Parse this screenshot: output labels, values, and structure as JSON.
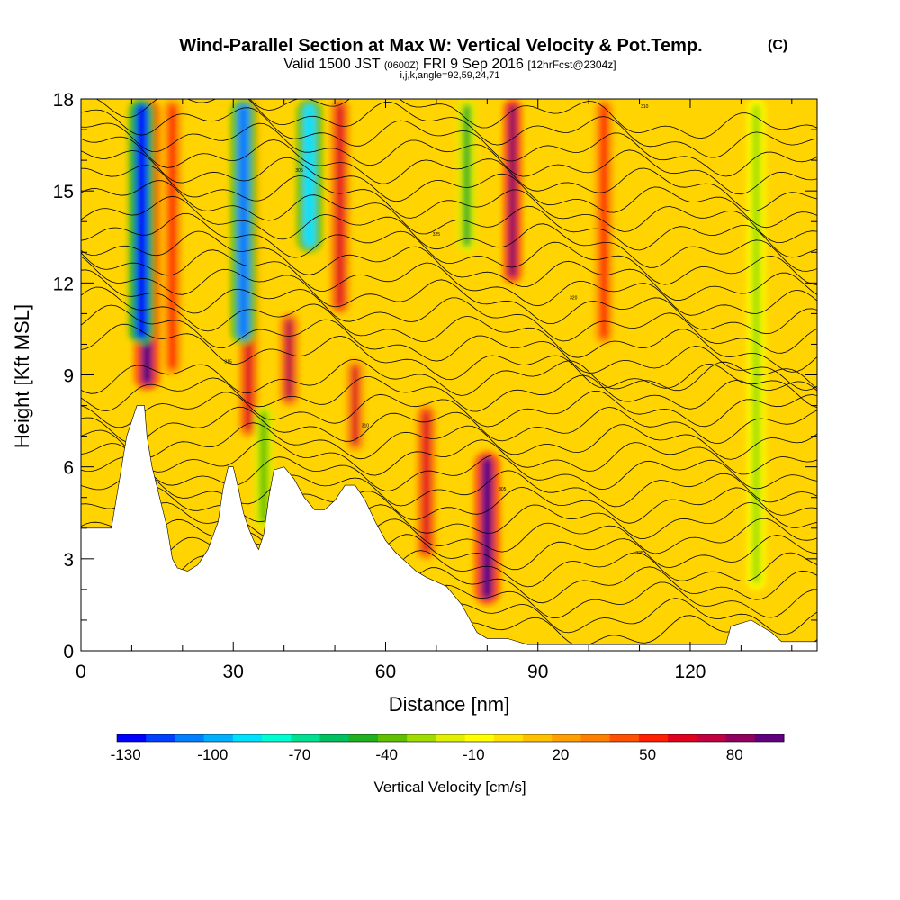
{
  "chart_data": {
    "type": "heatmap",
    "title": "Wind-Parallel Section at Max W: Vertical Velocity & Pot.Temp.",
    "title_mark": "(C)",
    "subtitle": {
      "valid": "Valid 1500 JST",
      "utc": "(0600Z)",
      "date": "FRI 9 Sep 2016",
      "fcst": "[12hrFcst@2304z]"
    },
    "subtitle2": "i,j,k,angle=92,59,24,71",
    "xlabel": "Distance [nm]",
    "ylabel": "Height [Kft MSL]",
    "xlim": [
      0,
      145
    ],
    "ylim": [
      0,
      18
    ],
    "x_ticks": [
      "0",
      "30",
      "60",
      "90",
      "120"
    ],
    "y_ticks": [
      "0",
      "3",
      "6",
      "9",
      "12",
      "15",
      "18"
    ],
    "colorbar": {
      "label": "Vertical Velocity [cm/s]",
      "tick_labels": [
        "-130",
        "-100",
        "-70",
        "-40",
        "-10",
        "20",
        "50",
        "80"
      ],
      "levels": [
        -130,
        -120,
        -110,
        -100,
        -90,
        -80,
        -70,
        -60,
        -50,
        -40,
        -30,
        -20,
        -10,
        0,
        10,
        20,
        30,
        40,
        50,
        60,
        70,
        80,
        90
      ],
      "colors": [
        "#0000ff",
        "#0040ff",
        "#0080ff",
        "#00b0ff",
        "#00e0ff",
        "#00ffd0",
        "#00e090",
        "#00c060",
        "#20b020",
        "#60c000",
        "#a0dc00",
        "#e0f000",
        "#ffff00",
        "#ffe000",
        "#ffc000",
        "#ffa000",
        "#ff8000",
        "#ff5000",
        "#ff2000",
        "#e00020",
        "#c00040",
        "#900060",
        "#600080"
      ]
    },
    "terrain_kft": [
      [
        0,
        4
      ],
      [
        6,
        4
      ],
      [
        7,
        5
      ],
      [
        9,
        7
      ],
      [
        11,
        8
      ],
      [
        12.5,
        8
      ],
      [
        13,
        7
      ],
      [
        14,
        6
      ],
      [
        15.5,
        5
      ],
      [
        17,
        4
      ],
      [
        18,
        3
      ],
      [
        19,
        2.7
      ],
      [
        21,
        2.6
      ],
      [
        23,
        2.8
      ],
      [
        25,
        3.3
      ],
      [
        27,
        4.2
      ],
      [
        28,
        5.3
      ],
      [
        29,
        6
      ],
      [
        30,
        6
      ],
      [
        31,
        5.3
      ],
      [
        32,
        4.5
      ],
      [
        33,
        4
      ],
      [
        34,
        3.6
      ],
      [
        35,
        3.3
      ],
      [
        36,
        3.8
      ],
      [
        37,
        5
      ],
      [
        38,
        5.9
      ],
      [
        40,
        6
      ],
      [
        42,
        5.6
      ],
      [
        44,
        5
      ],
      [
        46,
        4.6
      ],
      [
        48,
        4.6
      ],
      [
        50,
        4.9
      ],
      [
        52,
        5.4
      ],
      [
        54,
        5.4
      ],
      [
        56,
        4.9
      ],
      [
        58,
        4.2
      ],
      [
        60,
        3.6
      ],
      [
        62,
        3.2
      ],
      [
        64,
        2.9
      ],
      [
        66,
        2.6
      ],
      [
        68,
        2.4
      ],
      [
        72,
        2.1
      ],
      [
        75,
        1.5
      ],
      [
        78,
        0.6
      ],
      [
        80,
        0.4
      ],
      [
        84,
        0.4
      ],
      [
        88,
        0.2
      ],
      [
        127,
        0.2
      ],
      [
        128,
        0.8
      ],
      [
        132,
        1.0
      ],
      [
        134,
        0.8
      ],
      [
        136,
        0.6
      ],
      [
        138,
        0.3
      ],
      [
        145,
        0.3
      ]
    ],
    "updrafts_cms": [
      {
        "x": 13,
        "y0": 8.5,
        "y1": 18,
        "w": 90
      },
      {
        "x": 18,
        "y0": 9,
        "y1": 18,
        "w": 50
      },
      {
        "x": 33,
        "y0": 7,
        "y1": 18,
        "w": 60
      },
      {
        "x": 41,
        "y0": 8,
        "y1": 11,
        "w": 70
      },
      {
        "x": 54,
        "y0": 6.5,
        "y1": 9.5,
        "w": 55
      },
      {
        "x": 51,
        "y0": 11,
        "y1": 18,
        "w": 60
      },
      {
        "x": 68,
        "y0": 3,
        "y1": 8,
        "w": 60
      },
      {
        "x": 80,
        "y0": 1.5,
        "y1": 6.5,
        "w": 95
      },
      {
        "x": 85,
        "y0": 12,
        "y1": 18,
        "w": 80
      },
      {
        "x": 103,
        "y0": 10,
        "y1": 18,
        "w": 50
      }
    ],
    "downdrafts_cms": [
      {
        "x": 12,
        "y0": 10,
        "y1": 18,
        "w": -130
      },
      {
        "x": 32,
        "y0": 10,
        "y1": 18,
        "w": -110
      },
      {
        "x": 45,
        "y0": 13,
        "y1": 18,
        "w": -90
      },
      {
        "x": 36,
        "y0": 4,
        "y1": 8,
        "w": -40
      },
      {
        "x": 76,
        "y0": 13,
        "y1": 18,
        "w": -50
      },
      {
        "x": 133,
        "y0": 2,
        "y1": 18,
        "w": -30
      }
    ],
    "isentrope_labels": [
      "325",
      "320",
      "315",
      "310",
      "305"
    ]
  }
}
